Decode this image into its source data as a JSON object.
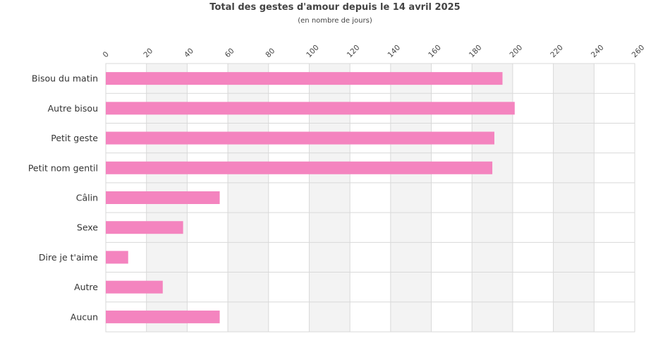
{
  "chart_data": {
    "type": "bar",
    "orientation": "horizontal",
    "title": "Total des gestes d'amour depuis le 14 avril 2025",
    "subtitle": "(en nombre de jours)",
    "categories": [
      "Bisou du matin",
      "Autre bisou",
      "Petit geste",
      "Petit nom gentil",
      "Câlin",
      "Sexe",
      "Dire je t'aime",
      "Autre",
      "Aucun"
    ],
    "values": [
      195,
      201,
      191,
      190,
      56,
      38,
      11,
      28,
      56
    ],
    "xlim": [
      0,
      260
    ],
    "xticks": [
      0,
      20,
      40,
      60,
      80,
      100,
      120,
      140,
      160,
      180,
      200,
      220,
      240,
      260
    ],
    "x_axis_position": "top",
    "tick_label_rotation": "diagonal",
    "grid": true,
    "alternating_band_shading": true,
    "legend": "none",
    "colors": {
      "bar": "#f484bf",
      "band": "#f3f3f3",
      "grid": "#d9d9d9"
    }
  }
}
